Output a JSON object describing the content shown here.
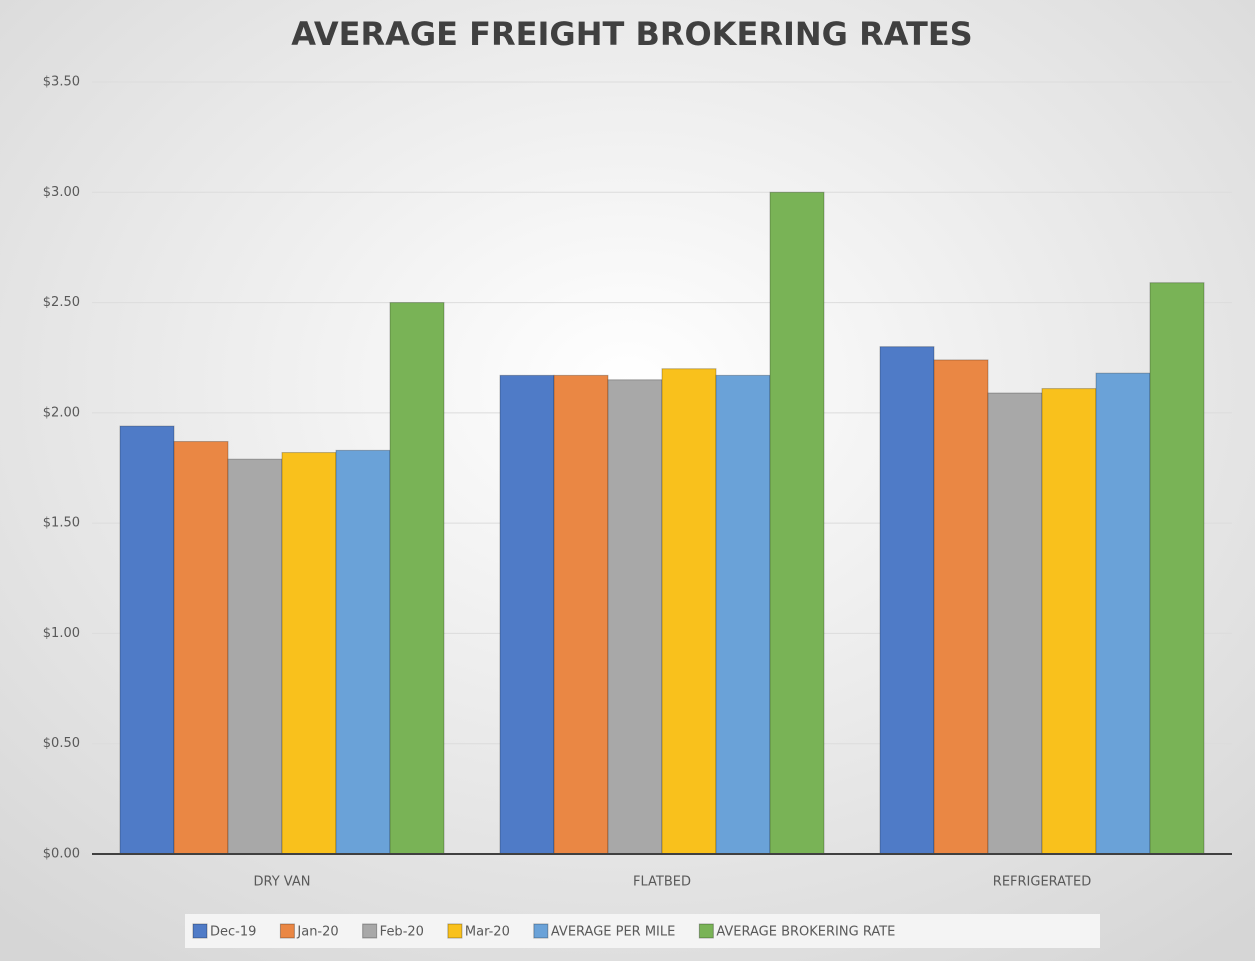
{
  "chart_data": {
    "type": "bar",
    "title": "AVERAGE FREIGHT BROKERING RATES",
    "categories": [
      "DRY VAN",
      "FLATBED",
      "REFRIGERATED"
    ],
    "series": [
      {
        "name": "Dec-19",
        "color": "#4f7bc7",
        "values": [
          1.94,
          2.17,
          2.3
        ]
      },
      {
        "name": "Jan-20",
        "color": "#ea8744",
        "values": [
          1.87,
          2.17,
          2.24
        ]
      },
      {
        "name": "Feb-20",
        "color": "#a8a8a8",
        "values": [
          1.79,
          2.15,
          2.09
        ]
      },
      {
        "name": "Mar-20",
        "color": "#f9c11c",
        "values": [
          1.82,
          2.2,
          2.11
        ]
      },
      {
        "name": "AVERAGE PER MILE",
        "color": "#6aa2d8",
        "values": [
          1.83,
          2.17,
          2.18
        ]
      },
      {
        "name": "AVERAGE BROKERING RATE",
        "color": "#79b356",
        "values": [
          2.5,
          3.0,
          2.59
        ]
      }
    ],
    "ylim": [
      0,
      3.5
    ],
    "yticks": [
      {
        "value": 0,
        "label": "$0.00"
      },
      {
        "value": 0.5,
        "label": "$0.50"
      },
      {
        "value": 1,
        "label": "$1.00"
      },
      {
        "value": 1.5,
        "label": "$1.50"
      },
      {
        "value": 2,
        "label": "$2.00"
      },
      {
        "value": 2.5,
        "label": "$2.50"
      },
      {
        "value": 3,
        "label": "$3.00"
      },
      {
        "value": 3.5,
        "label": "$3.50"
      }
    ],
    "grid": true,
    "legend": "bottom"
  }
}
